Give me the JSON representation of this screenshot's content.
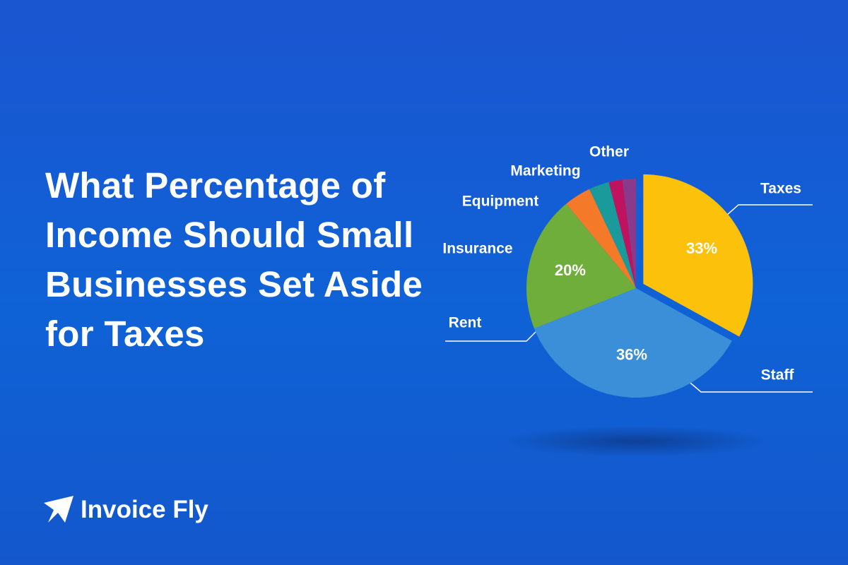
{
  "chart_data": {
    "type": "pie",
    "title": "What Percentage of Income Should Small Businesses Set Aside for Taxes",
    "categories": [
      "Taxes",
      "Staff",
      "Rent",
      "Insurance",
      "Equipment",
      "Marketing",
      "Other"
    ],
    "values": [
      33,
      36,
      20,
      4,
      3,
      2,
      2
    ],
    "value_labels": [
      "33%",
      "36%",
      "20%",
      null,
      null,
      null,
      null
    ],
    "colors": [
      "#fcc10a",
      "#3a8fd8",
      "#6fae3a",
      "#f47a2a",
      "#1a9a9a",
      "#c0135f",
      "#8a3a8a"
    ]
  },
  "brand": "Invoice Fly"
}
